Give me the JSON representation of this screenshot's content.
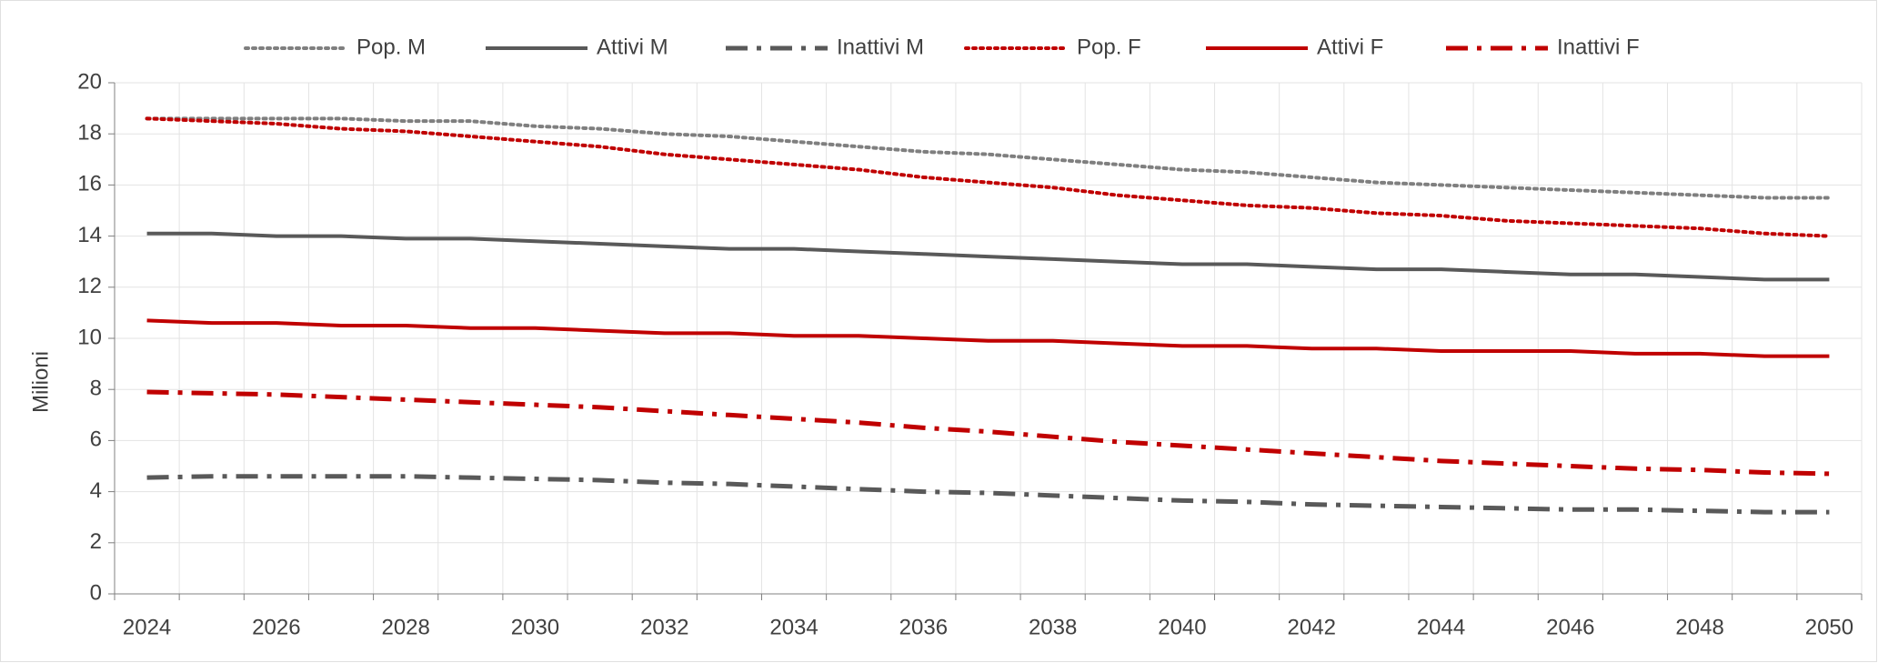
{
  "chart_data": {
    "type": "line",
    "y_label": "Milioni",
    "categories": [
      "2024",
      null,
      "2026",
      null,
      "2028",
      null,
      "2030",
      null,
      "2032",
      null,
      "2034",
      null,
      "2036",
      null,
      "2038",
      null,
      "2040",
      null,
      "2042",
      null,
      "2044",
      null,
      "2046",
      null,
      "2048",
      null,
      "2050"
    ],
    "ylim": [
      0,
      20
    ],
    "yticks": [
      0,
      2,
      4,
      6,
      8,
      10,
      12,
      14,
      16,
      18,
      20
    ],
    "grid": true,
    "legend": "top",
    "series": [
      {
        "name": "Pop. M",
        "color": "#7f7f7f",
        "style": "dotted",
        "values": [
          18.6,
          18.6,
          18.6,
          18.6,
          18.5,
          18.5,
          18.3,
          18.2,
          18.0,
          17.9,
          17.7,
          17.5,
          17.3,
          17.2,
          17.0,
          16.8,
          16.6,
          16.5,
          16.3,
          16.1,
          16.0,
          15.9,
          15.8,
          15.7,
          15.6,
          15.5,
          15.5
        ]
      },
      {
        "name": "Attivi M",
        "color": "#595959",
        "style": "solid",
        "values": [
          14.1,
          14.1,
          14.0,
          14.0,
          13.9,
          13.9,
          13.8,
          13.7,
          13.6,
          13.5,
          13.5,
          13.4,
          13.3,
          13.2,
          13.1,
          13.0,
          12.9,
          12.9,
          12.8,
          12.7,
          12.7,
          12.6,
          12.5,
          12.5,
          12.4,
          12.3,
          12.3
        ]
      },
      {
        "name": "Inattivi M",
        "color": "#595959",
        "style": "dashdot",
        "values": [
          4.55,
          4.6,
          4.6,
          4.6,
          4.6,
          4.55,
          4.5,
          4.45,
          4.35,
          4.3,
          4.2,
          4.1,
          4.0,
          3.95,
          3.85,
          3.75,
          3.65,
          3.6,
          3.5,
          3.45,
          3.4,
          3.35,
          3.3,
          3.3,
          3.25,
          3.2,
          3.2
        ]
      },
      {
        "name": "Pop. F",
        "color": "#c00000",
        "style": "dotted",
        "values": [
          18.6,
          18.5,
          18.4,
          18.2,
          18.1,
          17.9,
          17.7,
          17.5,
          17.2,
          17.0,
          16.8,
          16.6,
          16.3,
          16.1,
          15.9,
          15.6,
          15.4,
          15.2,
          15.1,
          14.9,
          14.8,
          14.6,
          14.5,
          14.4,
          14.3,
          14.1,
          14.0
        ]
      },
      {
        "name": "Attivi F",
        "color": "#c00000",
        "style": "solid",
        "values": [
          10.7,
          10.6,
          10.6,
          10.5,
          10.5,
          10.4,
          10.4,
          10.3,
          10.2,
          10.2,
          10.1,
          10.1,
          10.0,
          9.9,
          9.9,
          9.8,
          9.7,
          9.7,
          9.6,
          9.6,
          9.5,
          9.5,
          9.5,
          9.4,
          9.4,
          9.3,
          9.3
        ]
      },
      {
        "name": "Inattivi F",
        "color": "#c00000",
        "style": "dashdot",
        "values": [
          7.9,
          7.85,
          7.8,
          7.7,
          7.6,
          7.5,
          7.4,
          7.3,
          7.15,
          7.0,
          6.85,
          6.7,
          6.5,
          6.35,
          6.15,
          5.95,
          5.8,
          5.65,
          5.5,
          5.35,
          5.2,
          5.1,
          5.0,
          4.9,
          4.85,
          4.75,
          4.7
        ]
      }
    ]
  }
}
